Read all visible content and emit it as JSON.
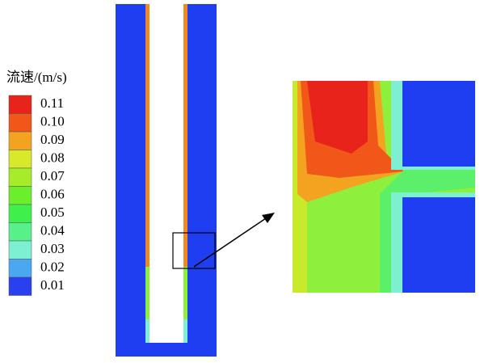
{
  "legend": {
    "title": "流速/(m/s)",
    "levels": [
      {
        "label": "0.11",
        "color": "#e8231b"
      },
      {
        "label": "0.10",
        "color": "#f2571a"
      },
      {
        "label": "0.09",
        "color": "#f4a321"
      },
      {
        "label": "0.08",
        "color": "#d8e82a"
      },
      {
        "label": "0.07",
        "color": "#a6ec2a"
      },
      {
        "label": "0.06",
        "color": "#6cee2c"
      },
      {
        "label": "0.05",
        "color": "#3ff04a"
      },
      {
        "label": "0.04",
        "color": "#58f08a"
      },
      {
        "label": "0.03",
        "color": "#7cf0d0"
      },
      {
        "label": "0.02",
        "color": "#4aa8f0"
      },
      {
        "label": "0.01",
        "color": "#2a3ff0"
      }
    ]
  }
}
